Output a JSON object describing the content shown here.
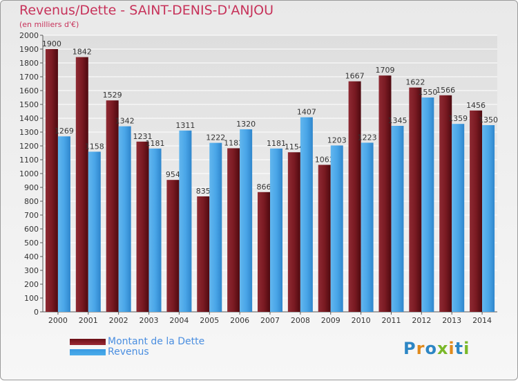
{
  "chart_data": {
    "type": "bar",
    "title": "Revenus/Dette - SAINT-DENIS-D'ANJOU",
    "subtitle": "(en milliers d'€)",
    "categories": [
      "2000",
      "2001",
      "2002",
      "2003",
      "2004",
      "2005",
      "2006",
      "2007",
      "2008",
      "2009",
      "2010",
      "2011",
      "2012",
      "2013",
      "2014"
    ],
    "series": [
      {
        "name": "Montant de la Dette",
        "color": "#7a1a22",
        "values": [
          1900,
          1842,
          1529,
          1231,
          954,
          835,
          1183,
          866,
          1154,
          1063,
          1667,
          1709,
          1622,
          1566,
          1456
        ]
      },
      {
        "name": "Revenus",
        "color": "#4aa6e8",
        "values": [
          1269,
          1158,
          1342,
          1181,
          1311,
          1222,
          1320,
          1181,
          1407,
          1203,
          1223,
          1345,
          1550,
          1359,
          1350
        ]
      }
    ],
    "ylim": [
      0,
      2000
    ],
    "ytick_step": 100,
    "grid": true,
    "legend_position": "bottom-left"
  },
  "logo": {
    "letters": [
      "P",
      "r",
      "o",
      "x",
      "i",
      "t",
      "i"
    ]
  }
}
